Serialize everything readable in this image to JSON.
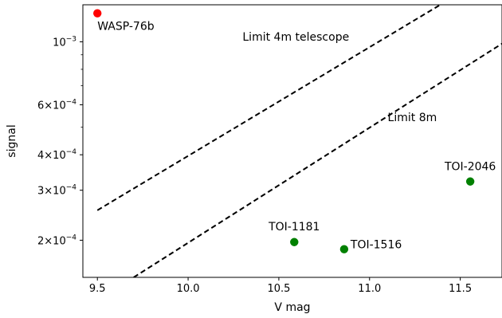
{
  "chart_data": {
    "type": "scatter",
    "xlabel": "V mag",
    "ylabel": "signal",
    "xlim": [
      9.42,
      11.73
    ],
    "ylim": [
      0.000148,
      0.00135
    ],
    "yscale": "log",
    "grid": false,
    "x_ticks": [
      {
        "value": 9.5,
        "label": "9.5"
      },
      {
        "value": 10.0,
        "label": "10.0"
      },
      {
        "value": 10.5,
        "label": "10.5"
      },
      {
        "value": 11.0,
        "label": "11.0"
      },
      {
        "value": 11.5,
        "label": "11.5"
      }
    ],
    "y_ticks": [
      {
        "value": 0.001,
        "mantissa": "",
        "times": "",
        "base": "10",
        "exp": "−3"
      },
      {
        "value": 0.0006,
        "mantissa": "6",
        "times": "×",
        "base": "10",
        "exp": "−4"
      },
      {
        "value": 0.0004,
        "mantissa": "4",
        "times": "×",
        "base": "10",
        "exp": "−4"
      },
      {
        "value": 0.0003,
        "mantissa": "3",
        "times": "×",
        "base": "10",
        "exp": "−4"
      },
      {
        "value": 0.0002,
        "mantissa": "2",
        "times": "×",
        "base": "10",
        "exp": "−4"
      }
    ],
    "y_minor_ticks": [
      0.0005,
      0.0007,
      0.0008,
      0.0009
    ],
    "points": [
      {
        "label": "WASP-76b",
        "x": 9.5,
        "y": 0.00126,
        "color": "#ff0000",
        "label_dx": 0.0,
        "label_dy": 16
      },
      {
        "label": "TOI-1181",
        "x": 10.585,
        "y": 0.000197,
        "color": "#008000",
        "label_dx": -0.0,
        "label_dy": -15
      },
      {
        "label": "TOI-1516",
        "x": 10.86,
        "y": 0.000186,
        "color": "#008000",
        "label_dx": 0.0,
        "label_dy": 0
      },
      {
        "label": "TOI-2046",
        "x": 11.555,
        "y": 0.000322,
        "color": "#008000",
        "label_dx": 0.0,
        "label_dy": -14
      }
    ],
    "lines": [
      {
        "label": "Limit 4m telescope",
        "x": [
          9.5,
          11.39
        ],
        "y": [
          0.000255,
          0.00135
        ],
        "style": "dashed",
        "color": "#000000"
      },
      {
        "label": "Limit 8m",
        "x": [
          9.7,
          11.73
        ],
        "y": [
          0.000148,
          0.000985
        ],
        "style": "dashed",
        "color": "#000000"
      }
    ],
    "annotations": [
      {
        "text": "Limit 4m telescope",
        "x": 10.3,
        "y": 0.00101
      },
      {
        "text": "Limit 8m",
        "x": 11.1,
        "y": 0.000525
      }
    ]
  }
}
